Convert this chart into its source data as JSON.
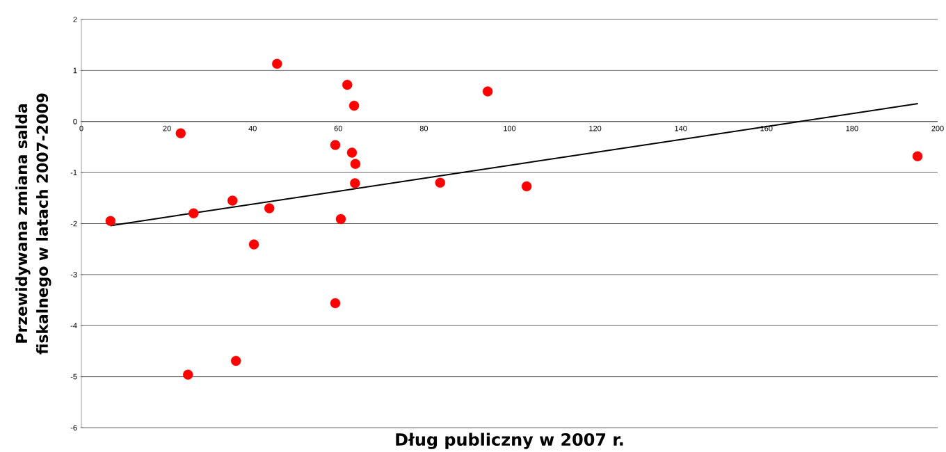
{
  "chart_data": {
    "type": "scatter",
    "xlabel": "Dług publiczny w 2007 r.",
    "ylabel": "Przewidywana zmiana salda fiskalnego w latach 2007-2009",
    "xlim": [
      0,
      200
    ],
    "ylim": [
      -6,
      2
    ],
    "xticks": [
      0,
      20,
      40,
      60,
      80,
      100,
      120,
      140,
      160,
      180,
      200
    ],
    "yticks": [
      -6,
      -5,
      -4,
      -3,
      -2,
      -1,
      0,
      1,
      2
    ],
    "grid": "y",
    "series": [
      {
        "marker": "circle",
        "color": "#ff0000",
        "x": [
          6.8,
          23.2,
          24.9,
          26.2,
          35.3,
          36.1,
          40.3,
          43.9,
          45.7,
          59.3,
          59.3,
          60.6,
          62.1,
          63.2,
          63.7,
          64.0,
          63.9,
          83.8,
          94.9,
          104.0,
          195.3
        ],
        "values": [
          -1.95,
          -0.23,
          -4.96,
          -1.8,
          -1.55,
          -4.69,
          -2.41,
          -1.7,
          1.13,
          -0.46,
          -3.56,
          -1.91,
          0.72,
          -0.61,
          0.31,
          -0.83,
          -1.21,
          -1.2,
          0.59,
          -1.27,
          -0.68
        ]
      },
      {
        "type": "line",
        "marker": "none",
        "line_style": "solid",
        "color": "#000000",
        "x": [
          6.8,
          195.4
        ],
        "values": [
          -2.04,
          0.35
        ]
      }
    ]
  }
}
